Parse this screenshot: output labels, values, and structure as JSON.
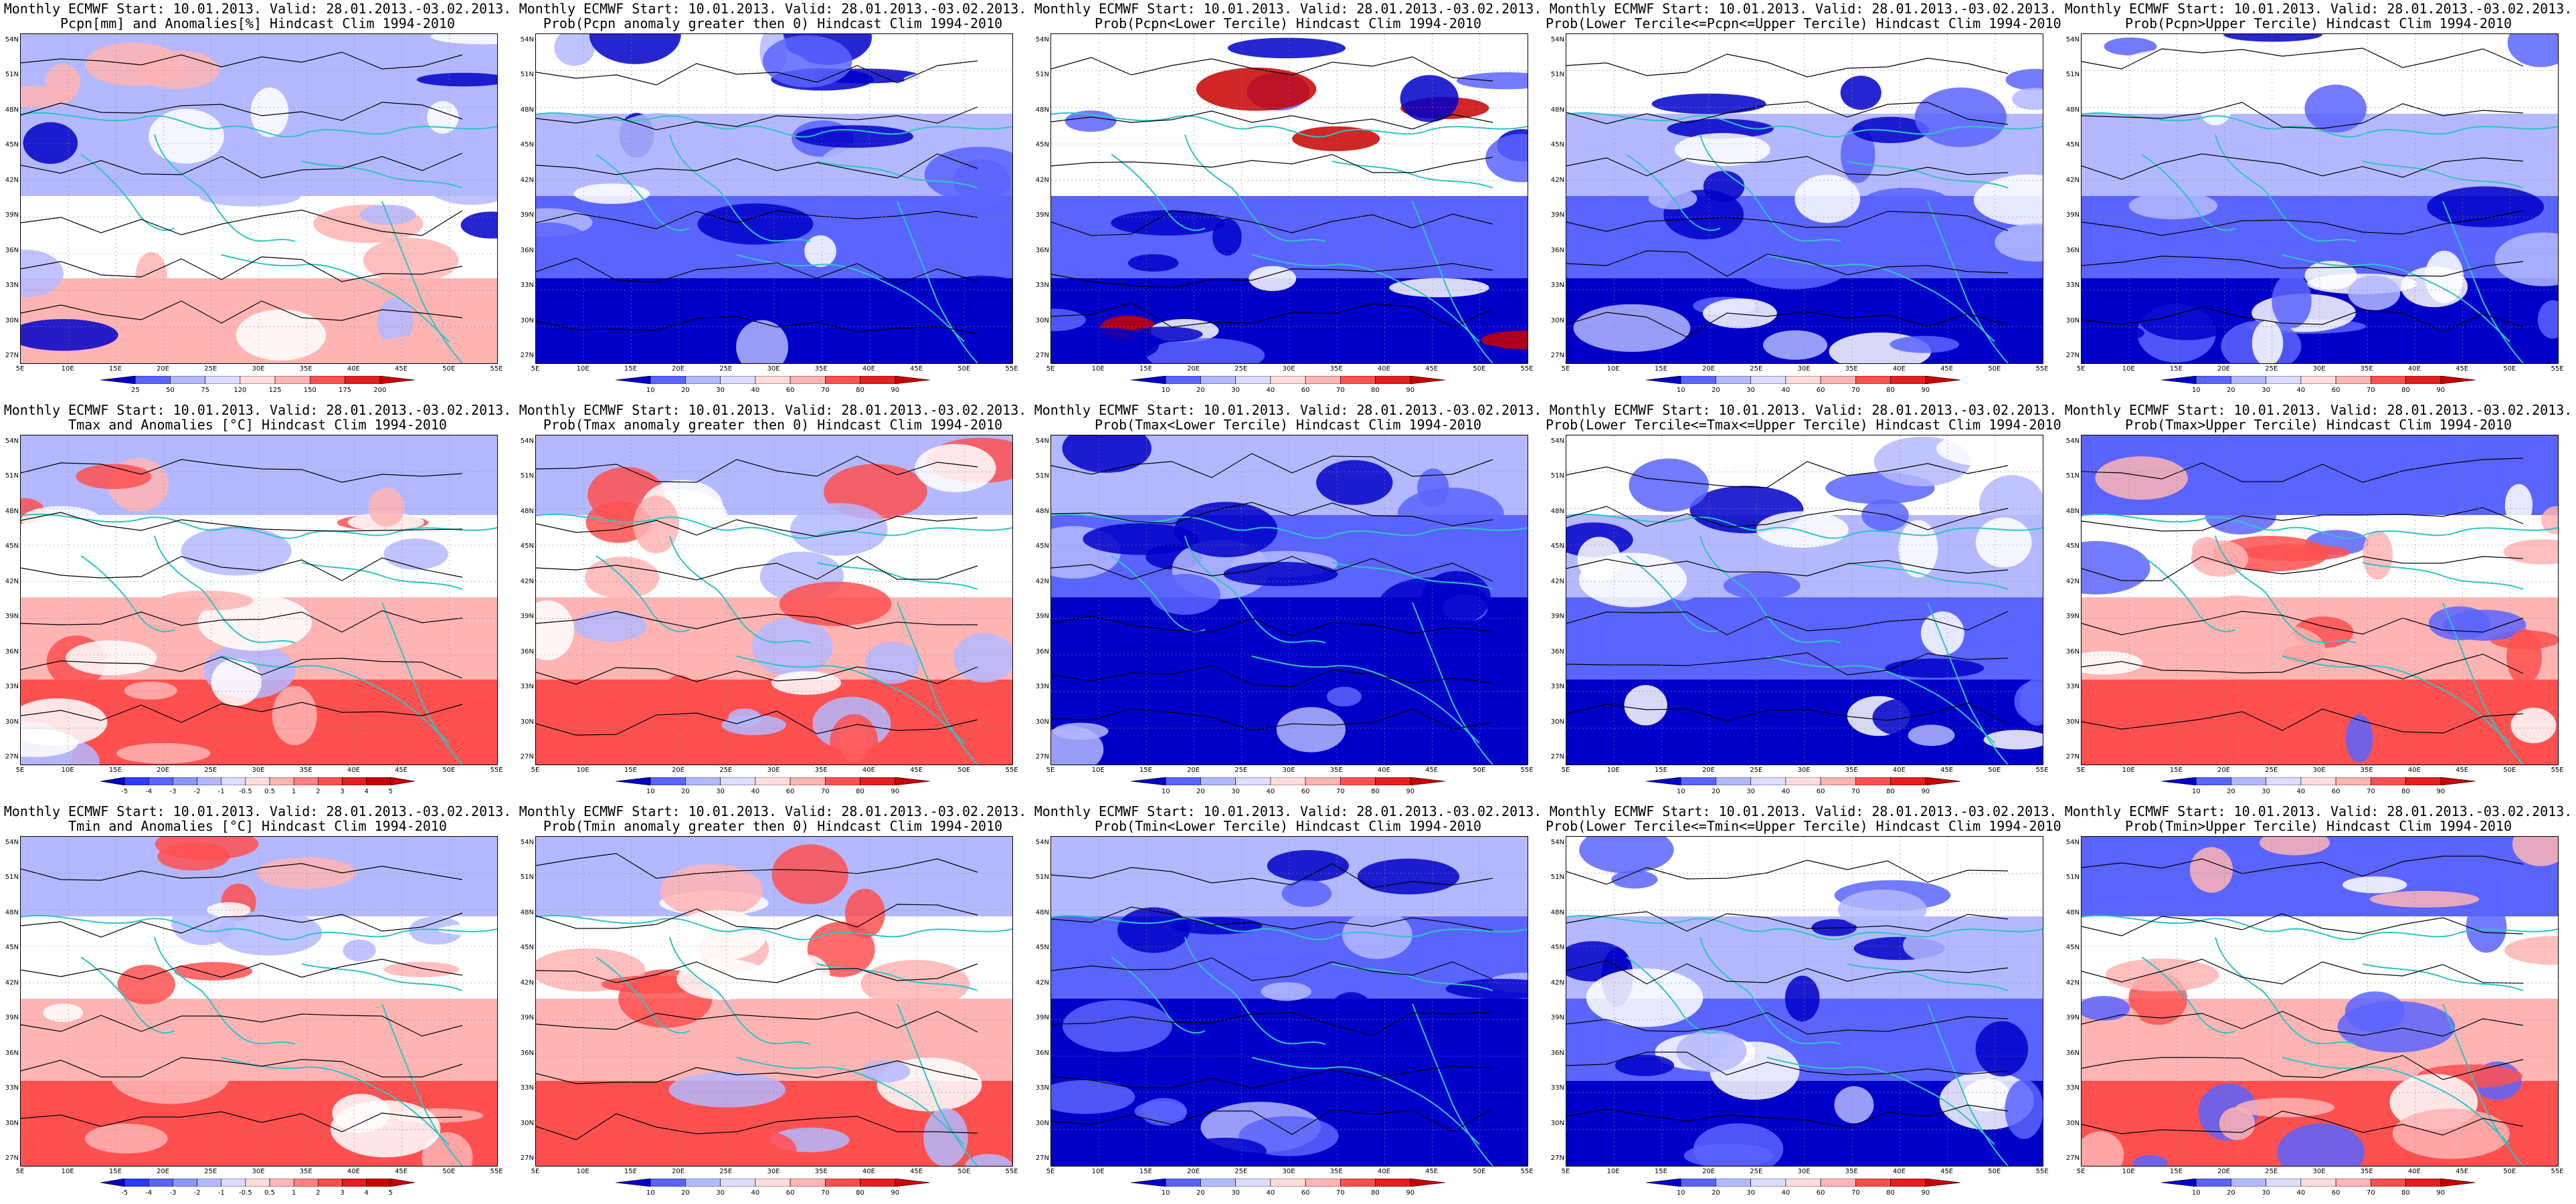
{
  "panels": [
    {
      "title1": "Monthly ECMWF Start: 10.01.2013. Valid: 28.01.2013.-03.02.2013.",
      "title2": "Pcpn[mm] and Anomalies[%] Hindcast Clim 1994-2010",
      "scheme": "anom",
      "colorbar": [
        "25",
        "50",
        "75",
        "120",
        "125",
        "150",
        "175",
        "200"
      ]
    },
    {
      "title1": "Monthly ECMWF Start: 10.01.2013. Valid: 28.01.2013.-03.02.2013.",
      "title2": "Prob(Pcpn anomaly greater then 0) Hindcast Clim 1994-2010",
      "scheme": "blue",
      "colorbar": [
        "10",
        "20",
        "30",
        "40",
        "60",
        "70",
        "80",
        "90"
      ]
    },
    {
      "title1": "Monthly ECMWF Start: 10.01.2013. Valid: 28.01.2013.-03.02.2013.",
      "title2": "Prob(Pcpn<Lower Tercile) Hindcast Clim 1994-2010",
      "scheme": "bluered",
      "colorbar": [
        "10",
        "20",
        "30",
        "40",
        "60",
        "70",
        "80",
        "90"
      ]
    },
    {
      "title1": "Monthly ECMWF Start: 10.01.2013. Valid: 28.01.2013.-03.02.2013.",
      "title2": "Prob(Lower Tercile<=Pcpn<=Upper Tercile) Hindcast Clim 1994-2010",
      "scheme": "blue",
      "colorbar": [
        "10",
        "20",
        "30",
        "40",
        "60",
        "70",
        "80",
        "90"
      ]
    },
    {
      "title1": "Monthly ECMWF Start: 10.01.2013. Valid: 28.01.2013.-03.02.2013.",
      "title2": "Prob(Pcpn>Upper Tercile) Hindcast Clim 1994-2010",
      "scheme": "blue",
      "colorbar": [
        "10",
        "20",
        "30",
        "40",
        "60",
        "70",
        "80",
        "90"
      ]
    },
    {
      "title1": "Monthly ECMWF Start: 10.01.2013. Valid: 28.01.2013.-03.02.2013.",
      "title2": "Tmax and Anomalies [°C] Hindcast Clim 1994-2010",
      "scheme": "warm",
      "colorbar": [
        "-5",
        "-4",
        "-3",
        "-2",
        "-1",
        "-0.5",
        "0.5",
        "1",
        "2",
        "3",
        "4",
        "5"
      ]
    },
    {
      "title1": "Monthly ECMWF Start: 10.01.2013. Valid: 28.01.2013.-03.02.2013.",
      "title2": "Prob(Tmax anomaly greater then 0) Hindcast Clim 1994-2010",
      "scheme": "warm",
      "colorbar": [
        "10",
        "20",
        "30",
        "40",
        "60",
        "70",
        "80",
        "90"
      ]
    },
    {
      "title1": "Monthly ECMWF Start: 10.01.2013. Valid: 28.01.2013.-03.02.2013.",
      "title2": "Prob(Tmax<Lower Tercile) Hindcast Clim 1994-2010",
      "scheme": "deepblue",
      "colorbar": [
        "10",
        "20",
        "30",
        "40",
        "60",
        "70",
        "80",
        "90"
      ]
    },
    {
      "title1": "Monthly ECMWF Start: 10.01.2013. Valid: 28.01.2013.-03.02.2013.",
      "title2": "Prob(Lower Tercile<=Tmax<=Upper Tercile) Hindcast Clim 1994-2010",
      "scheme": "blue",
      "colorbar": [
        "10",
        "20",
        "30",
        "40",
        "60",
        "70",
        "80",
        "90"
      ]
    },
    {
      "title1": "Monthly ECMWF Start: 10.01.2013. Valid: 28.01.2013.-03.02.2013.",
      "title2": "Prob(Tmax>Upper Tercile) Hindcast Clim 1994-2010",
      "scheme": "warmtop",
      "colorbar": [
        "10",
        "20",
        "30",
        "40",
        "60",
        "70",
        "80",
        "90"
      ]
    },
    {
      "title1": "Monthly ECMWF Start: 10.01.2013. Valid: 28.01.2013.-03.02.2013.",
      "title2": "Tmin and Anomalies [°C] Hindcast Clim 1994-2010",
      "scheme": "warm",
      "colorbar": [
        "-5",
        "-4",
        "-3",
        "-2",
        "-1",
        "-0.5",
        "0.5",
        "1",
        "2",
        "3",
        "4",
        "5"
      ]
    },
    {
      "title1": "Monthly ECMWF Start: 10.01.2013. Valid: 28.01.2013.-03.02.2013.",
      "title2": "Prob(Tmin anomaly greater then 0) Hindcast Clim 1994-2010",
      "scheme": "warm",
      "colorbar": [
        "10",
        "20",
        "30",
        "40",
        "60",
        "70",
        "80",
        "90"
      ]
    },
    {
      "title1": "Monthly ECMWF Start: 10.01.2013. Valid: 28.01.2013.-03.02.2013.",
      "title2": "Prob(Tmin<Lower Tercile) Hindcast Clim 1994-2010",
      "scheme": "deepblue",
      "colorbar": [
        "10",
        "20",
        "30",
        "40",
        "60",
        "70",
        "80",
        "90"
      ]
    },
    {
      "title1": "Monthly ECMWF Start: 10.01.2013. Valid: 28.01.2013.-03.02.2013.",
      "title2": "Prob(Lower Tercile<=Tmin<=Upper Tercile) Hindcast Clim 1994-2010",
      "scheme": "blue",
      "colorbar": [
        "10",
        "20",
        "30",
        "40",
        "60",
        "70",
        "80",
        "90"
      ]
    },
    {
      "title1": "Monthly ECMWF Start: 10.01.2013. Valid: 28.01.2013.-03.02.2013.",
      "title2": "Prob(Tmin>Upper Tercile) Hindcast Clim 1994-2010",
      "scheme": "warmtop",
      "colorbar": [
        "10",
        "20",
        "30",
        "40",
        "60",
        "70",
        "80",
        "90"
      ]
    }
  ],
  "lat_labels": [
    "54N",
    "51N",
    "48N",
    "45N",
    "42N",
    "39N",
    "36N",
    "33N",
    "30N",
    "27N"
  ],
  "lon_labels": [
    "5E",
    "10E",
    "15E",
    "20E",
    "25E",
    "30E",
    "35E",
    "40E",
    "45E",
    "50E",
    "55E"
  ],
  "colors": {
    "coast": "#2ec4c4",
    "contour": "#000000",
    "blue_dark": "#0000c8",
    "blue_mid": "#5a64ff",
    "blue_light": "#b4b9ff",
    "white": "#ffffff",
    "red_light": "#ffb4b4",
    "red_mid": "#ff5050",
    "red_dark": "#c80000"
  }
}
